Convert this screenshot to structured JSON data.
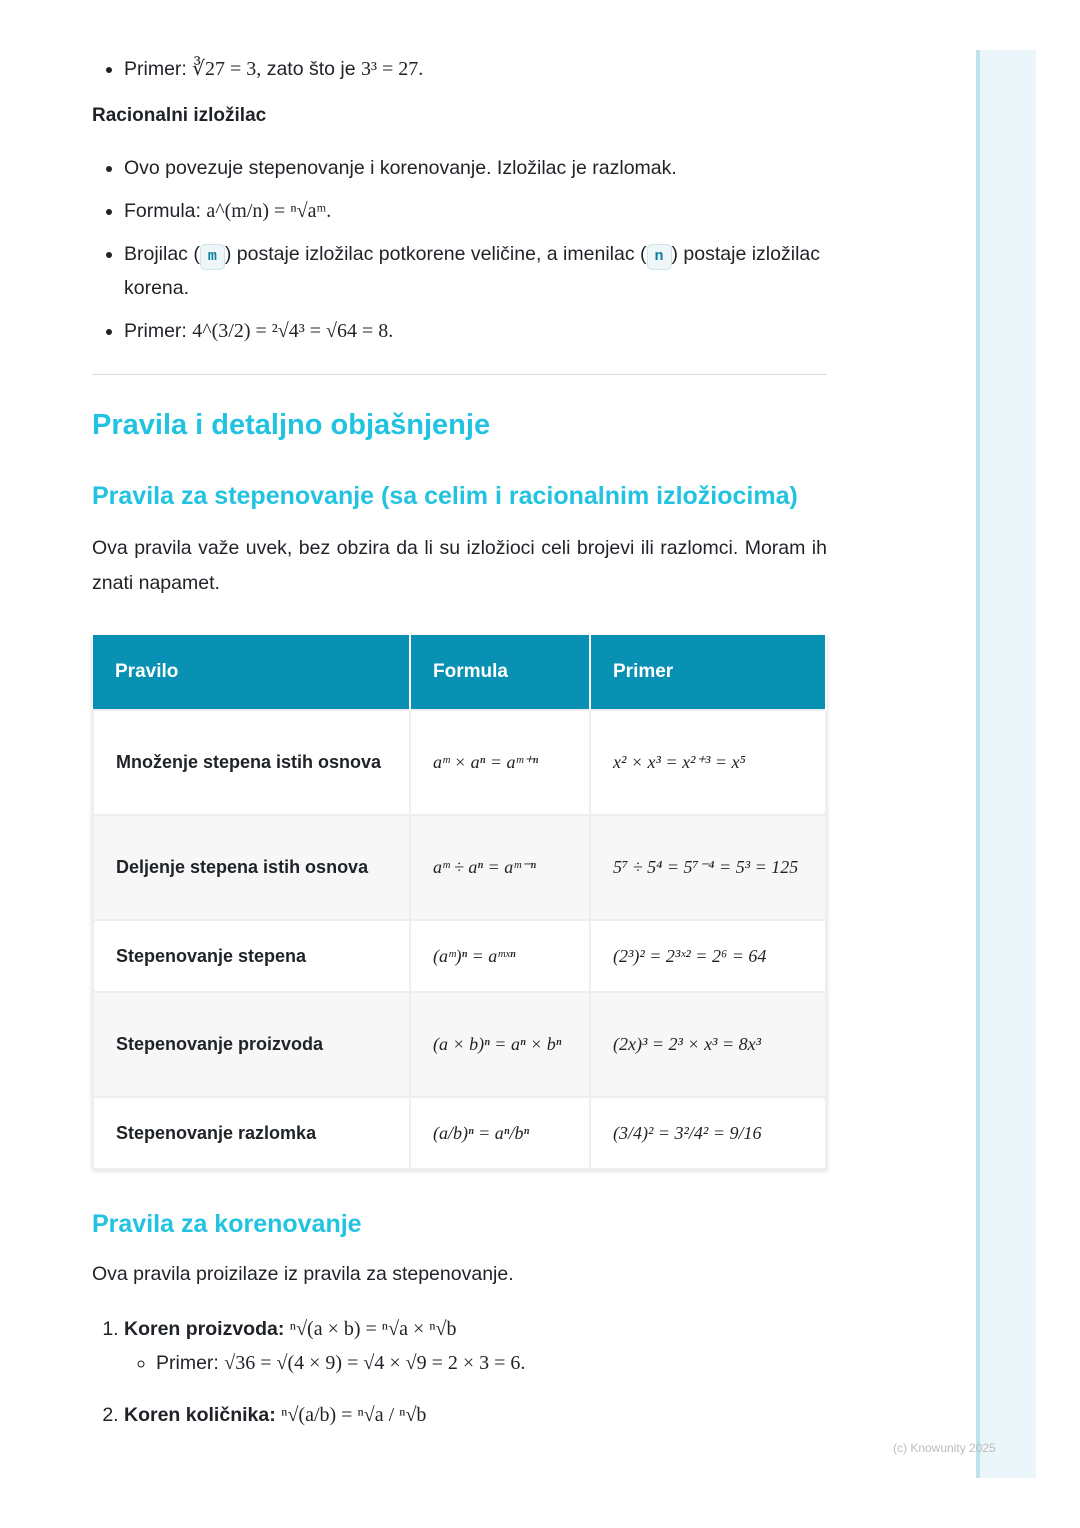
{
  "section_top": {
    "example_bullet": {
      "label": "Primer:",
      "math": "∛27 = 3,",
      "text": " zato što je ",
      "math2": "3³ = 27."
    }
  },
  "rational": {
    "heading": "Racionalni izložilac",
    "bullets": {
      "b1": "Ovo povezuje stepenovanje i korenovanje. Izložilac je razlomak.",
      "b2_label": "Formula: ",
      "b2_math": "a^(m/n) = ⁿ√aᵐ.",
      "b3_part1": "Brojilac (",
      "b3_code1": "m",
      "b3_part2": ") postaje izložilac potkorene veličine, a imenilac (",
      "b3_code2": "n",
      "b3_part3": ") postaje izložilac korena.",
      "b4_label": "Primer: ",
      "b4_math": "4^(3/2) = ²√4³ = √64 = 8."
    }
  },
  "main": {
    "title": "Pravila i detaljno objašnjenje",
    "powers": {
      "title": "Pravila za stepenovanje (sa celim i racionalnim izložiocima)",
      "intro": "Ova pravila važe uvek, bez obzira da li su izložioci celi brojevi ili razlomci. Moram ih znati napamet.",
      "table": {
        "headers": [
          "Pravilo",
          "Formula",
          "Primer"
        ],
        "rows": [
          [
            "Množenje stepena istih osnova",
            "aᵐ × aⁿ = aᵐ⁺ⁿ",
            "x² × x³ = x²⁺³ = x⁵"
          ],
          [
            "Deljenje stepena istih osnova",
            "aᵐ ÷ aⁿ = aᵐ⁻ⁿ",
            "5⁷ ÷ 5⁴ = 5⁷⁻⁴ = 5³ = 125"
          ],
          [
            "Stepenovanje stepena",
            "(aᵐ)ⁿ = aᵐˣⁿ",
            "(2³)² = 2³ˣ² = 2⁶ = 64"
          ],
          [
            "Stepenovanje proizvoda",
            "(a × b)ⁿ = aⁿ × bⁿ",
            "(2x)³ = 2³ × x³ = 8x³"
          ],
          [
            "Stepenovanje razlomka",
            "(a/b)ⁿ = aⁿ/bⁿ",
            "(3/4)² = 3²/4² = 9/16"
          ]
        ]
      }
    },
    "roots": {
      "title": "Pravila za korenovanje",
      "intro": "Ova pravila proizilaze iz pravila za stepenovanje.",
      "items": [
        {
          "label": "Koren proizvoda:",
          "math": "ⁿ√(a × b) = ⁿ√a × ⁿ√b",
          "example_label": "Primer: ",
          "example": "√36 = √(4 × 9) = √4 × √9 = 2 × 3 = 6."
        },
        {
          "label": "Koren količnika:",
          "math": "ⁿ√(a/b) = ⁿ√a / ⁿ√b"
        }
      ]
    }
  },
  "footer": {
    "copyright": "(c) Knowunity 2025"
  },
  "colors": {
    "heading": "#22c3e0",
    "table_header": "#0891b2",
    "sidebar": "#eaf6fa"
  }
}
